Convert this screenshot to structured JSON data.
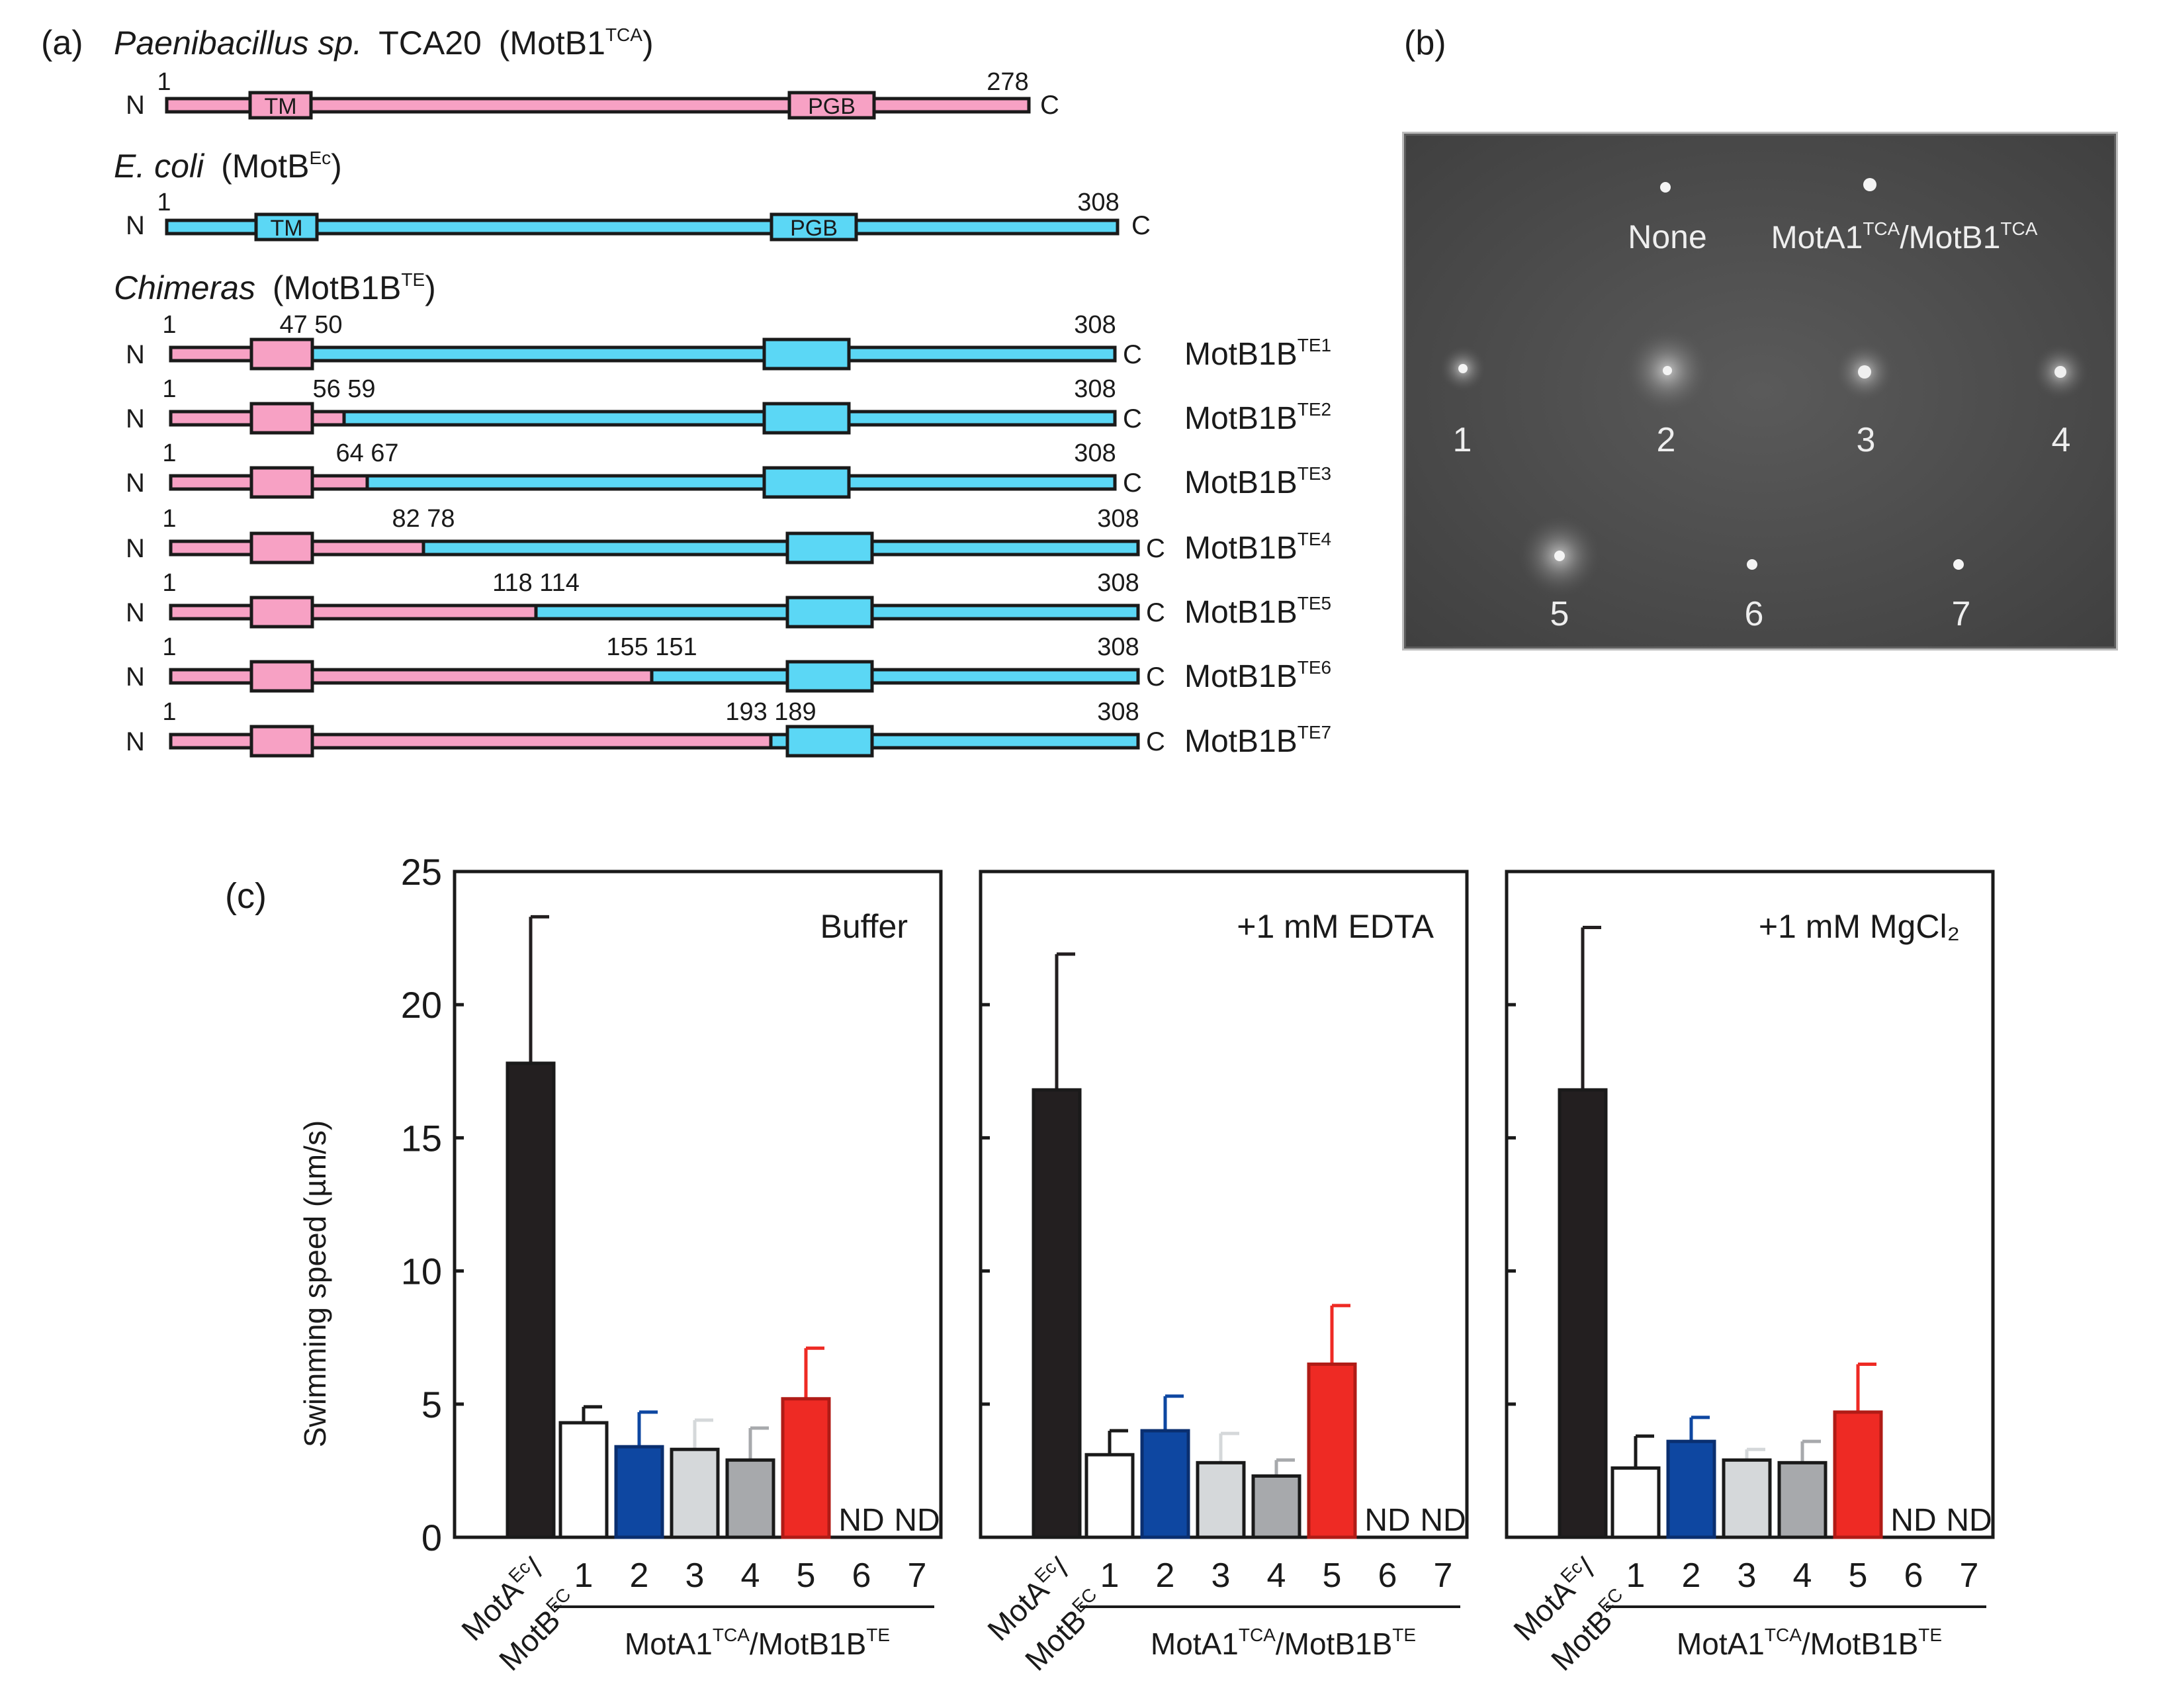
{
  "panel_a": {
    "label": "(a)",
    "tca": {
      "species": "Paenibacillus sp.",
      "strain": "TCA20",
      "protein": "MotB1",
      "sup": "TCA",
      "length": "278",
      "tm": "TM",
      "pgb": "PGB"
    },
    "ecoli": {
      "species": "E. coli",
      "protein": "MotB",
      "sup": "Ec",
      "length": "308",
      "tm": "TM",
      "pgb": "PGB"
    },
    "chimeras": {
      "heading": "Chimeras",
      "protein": "MotB1B",
      "sup": "TE",
      "start": "1",
      "end": "308",
      "n_label": "N",
      "c_label": "C",
      "items": [
        {
          "junction": "47 50",
          "name": "MotB1B",
          "sup": "TE1"
        },
        {
          "junction": "56 59",
          "name": "MotB1B",
          "sup": "TE2"
        },
        {
          "junction": "64 67",
          "name": "MotB1B",
          "sup": "TE3"
        },
        {
          "junction": "82 78",
          "name": "MotB1B",
          "sup": "TE4"
        },
        {
          "junction": "118 114",
          "name": "MotB1B",
          "sup": "TE5"
        },
        {
          "junction": "155 151",
          "name": "MotB1B",
          "sup": "TE6"
        },
        {
          "junction": "193 189",
          "name": "MotB1B",
          "sup": "TE7"
        }
      ]
    }
  },
  "panel_b": {
    "label": "(b)",
    "none_label": "None",
    "pos_label_a": "MotA1",
    "pos_label_sup1": "TCA",
    "pos_label_b": "/MotB1",
    "pos_label_sup2": "TCA",
    "colonies": [
      "1",
      "2",
      "3",
      "4",
      "5",
      "6",
      "7"
    ]
  },
  "panel_c": {
    "label": "(c)",
    "ylabel": "Swimming speed (µm/s)",
    "yticks": [
      "0",
      "5",
      "10",
      "15",
      "20",
      "25"
    ],
    "control_line1": "MotA",
    "control_sup1": "Ec",
    "control_line2": "MotB",
    "control_sup2": "EC",
    "group_a": "MotA1",
    "group_sup_a": "TCA",
    "group_b": "/MotB1B",
    "group_sup_b": "TE",
    "nd": "ND",
    "strain_labels": [
      "1",
      "2",
      "3",
      "4",
      "5",
      "6",
      "7"
    ]
  },
  "colors": {
    "tca": "#f7a1c4",
    "ecoli": "#5bd7f5",
    "control_bar": "#231f20",
    "bar1": "#ffffff",
    "bar2": "#0e47a1",
    "bar3": "#d5d8da",
    "bar4": "#a7a9ac",
    "bar5": "#ee2a24",
    "plate_bg": "#545454"
  },
  "chart_data": [
    {
      "type": "bar",
      "title": "Buffer",
      "ylabel": "Swimming speed (µm/s)",
      "ylim": [
        0,
        25
      ],
      "categories": [
        "MotAEc/MotBEC",
        "1",
        "2",
        "3",
        "4",
        "5",
        "6",
        "7"
      ],
      "values": [
        17.8,
        4.3,
        3.4,
        3.3,
        2.9,
        5.2,
        null,
        null
      ],
      "errors": [
        5.5,
        0.6,
        1.3,
        1.1,
        1.2,
        1.9,
        null,
        null
      ],
      "annotations": [
        "",
        "",
        "",
        "",
        "",
        "",
        "ND",
        "ND"
      ]
    },
    {
      "type": "bar",
      "title": "+1 mM EDTA",
      "ylabel": "Swimming speed (µm/s)",
      "ylim": [
        0,
        25
      ],
      "categories": [
        "MotAEc/MotBEC",
        "1",
        "2",
        "3",
        "4",
        "5",
        "6",
        "7"
      ],
      "values": [
        16.8,
        3.1,
        4.0,
        2.8,
        2.3,
        6.5,
        null,
        null
      ],
      "errors": [
        5.1,
        0.9,
        1.3,
        1.1,
        0.6,
        2.2,
        null,
        null
      ],
      "annotations": [
        "",
        "",
        "",
        "",
        "",
        "",
        "ND",
        "ND"
      ]
    },
    {
      "type": "bar",
      "title": "+1 mM MgCl₂",
      "ylabel": "Swimming speed (µm/s)",
      "ylim": [
        0,
        25
      ],
      "categories": [
        "MotAEc/MotBEC",
        "1",
        "2",
        "3",
        "4",
        "5",
        "6",
        "7"
      ],
      "values": [
        16.8,
        2.6,
        3.6,
        2.9,
        2.8,
        4.7,
        null,
        null
      ],
      "errors": [
        6.1,
        1.2,
        0.9,
        0.4,
        0.8,
        1.8,
        null,
        null
      ],
      "annotations": [
        "",
        "",
        "",
        "",
        "",
        "",
        "ND",
        "ND"
      ]
    }
  ]
}
